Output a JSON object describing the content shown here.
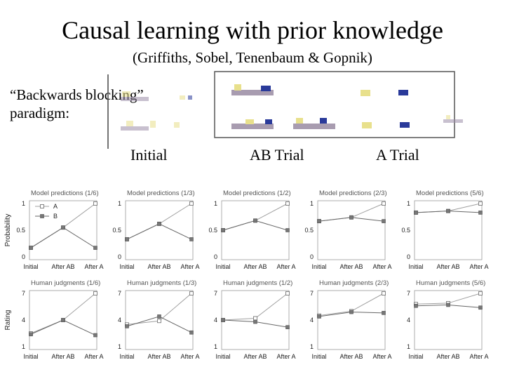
{
  "slide": {
    "title": "Causal learning with prior knowledge",
    "subtitle": "(Griffiths, Sobel, Tenenbaum & Gopnik)",
    "paradigm_line1": "“Backwards blocking”",
    "paradigm_line2": "paradigm:",
    "phases": [
      "Initial",
      "AB Trial",
      "A Trial"
    ]
  },
  "chart_data": [
    {
      "type": "line",
      "title": "Model predictions (1/6)",
      "categories": [
        "Initial",
        "After AB",
        "After A"
      ],
      "ylim": [
        0,
        1
      ],
      "yticks": [
        "0",
        "0.5",
        "1"
      ],
      "ylabel": "Probability",
      "legend": [
        "A",
        "B"
      ],
      "series": [
        {
          "name": "A",
          "values": [
            0.17,
            0.55,
            1.0
          ]
        },
        {
          "name": "B",
          "values": [
            0.17,
            0.55,
            0.17
          ]
        }
      ]
    },
    {
      "type": "line",
      "title": "Model predictions (1/3)",
      "categories": [
        "Initial",
        "After AB",
        "After A"
      ],
      "ylim": [
        0,
        1
      ],
      "yticks": [
        "0",
        "0.5",
        "1"
      ],
      "series": [
        {
          "name": "A",
          "values": [
            0.33,
            0.62,
            1.0
          ]
        },
        {
          "name": "B",
          "values": [
            0.33,
            0.62,
            0.33
          ]
        }
      ]
    },
    {
      "type": "line",
      "title": "Model predictions (1/2)",
      "categories": [
        "Initial",
        "After AB",
        "After A"
      ],
      "ylim": [
        0,
        1
      ],
      "yticks": [
        "0",
        "0.5",
        "1"
      ],
      "series": [
        {
          "name": "A",
          "values": [
            0.5,
            0.68,
            1.0
          ]
        },
        {
          "name": "B",
          "values": [
            0.5,
            0.68,
            0.5
          ]
        }
      ]
    },
    {
      "type": "line",
      "title": "Model predictions (2/3)",
      "categories": [
        "Initial",
        "After AB",
        "After A"
      ],
      "ylim": [
        0,
        1
      ],
      "yticks": [
        "0",
        "0.5",
        "1"
      ],
      "series": [
        {
          "name": "A",
          "values": [
            0.67,
            0.74,
            1.0
          ]
        },
        {
          "name": "B",
          "values": [
            0.67,
            0.74,
            0.67
          ]
        }
      ]
    },
    {
      "type": "line",
      "title": "Model predictions (5/6)",
      "categories": [
        "Initial",
        "After AB",
        "After A"
      ],
      "ylim": [
        0,
        1
      ],
      "yticks": [
        "0",
        "0.5",
        "1"
      ],
      "series": [
        {
          "name": "A",
          "values": [
            0.83,
            0.86,
            1.0
          ]
        },
        {
          "name": "B",
          "values": [
            0.83,
            0.86,
            0.83
          ]
        }
      ]
    },
    {
      "type": "line",
      "title": "Human judgments (1/6)",
      "categories": [
        "Initial",
        "After AB",
        "After A"
      ],
      "ylim": [
        1,
        7
      ],
      "yticks": [
        "1",
        "4",
        "7"
      ],
      "ylabel": "Rating",
      "series": [
        {
          "name": "A",
          "values": [
            2.5,
            4.0,
            7.0
          ]
        },
        {
          "name": "B",
          "values": [
            2.4,
            4.0,
            2.3
          ]
        }
      ]
    },
    {
      "type": "line",
      "title": "Human judgments (1/3)",
      "categories": [
        "Initial",
        "After AB",
        "After A"
      ],
      "ylim": [
        1,
        7
      ],
      "yticks": [
        "1",
        "4",
        "7"
      ],
      "series": [
        {
          "name": "A",
          "values": [
            3.5,
            3.9,
            7.0
          ]
        },
        {
          "name": "B",
          "values": [
            3.3,
            4.4,
            2.6
          ]
        }
      ]
    },
    {
      "type": "line",
      "title": "Human judgments (1/2)",
      "categories": [
        "Initial",
        "After AB",
        "After A"
      ],
      "ylim": [
        1,
        7
      ],
      "yticks": [
        "1",
        "4",
        "7"
      ],
      "series": [
        {
          "name": "A",
          "values": [
            4.0,
            4.2,
            7.0
          ]
        },
        {
          "name": "B",
          "values": [
            4.0,
            3.8,
            3.2
          ]
        }
      ]
    },
    {
      "type": "line",
      "title": "Human judgments (2/3)",
      "categories": [
        "Initial",
        "After AB",
        "After A"
      ],
      "ylim": [
        1,
        7
      ],
      "yticks": [
        "1",
        "4",
        "7"
      ],
      "series": [
        {
          "name": "A",
          "values": [
            4.5,
            5.0,
            7.0
          ]
        },
        {
          "name": "B",
          "values": [
            4.4,
            4.9,
            4.8
          ]
        }
      ]
    },
    {
      "type": "line",
      "title": "Human judgments (5/6)",
      "categories": [
        "Initial",
        "After AB",
        "After A"
      ],
      "ylim": [
        1,
        7
      ],
      "yticks": [
        "1",
        "4",
        "7"
      ],
      "series": [
        {
          "name": "A",
          "values": [
            5.8,
            5.9,
            7.0
          ]
        },
        {
          "name": "B",
          "values": [
            5.6,
            5.7,
            5.4
          ]
        }
      ]
    }
  ]
}
